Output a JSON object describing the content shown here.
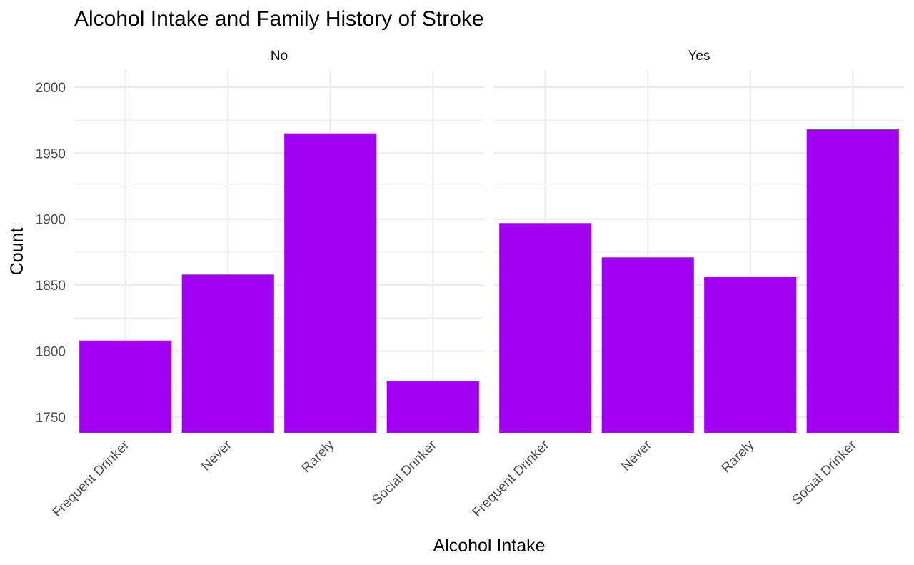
{
  "chart_data": {
    "type": "bar",
    "title": "Alcohol Intake and Family History of Stroke",
    "xlabel": "Alcohol Intake",
    "ylabel": "Count",
    "categories": [
      "Frequent Drinker",
      "Never",
      "Rarely",
      "Social Drinker"
    ],
    "facets": [
      {
        "label": "No",
        "values": [
          1808,
          1858,
          1965,
          1777
        ]
      },
      {
        "label": "Yes",
        "values": [
          1897,
          1871,
          1856,
          1968
        ]
      }
    ],
    "yticks": [
      1750,
      1800,
      1850,
      1900,
      1950,
      2000
    ],
    "ylim": [
      1738,
      2013
    ],
    "bar_color": "#a000f0",
    "grid": true
  }
}
